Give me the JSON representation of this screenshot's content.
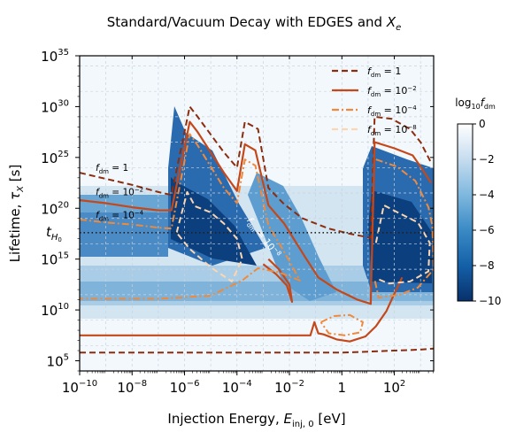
{
  "chart_data": {
    "type": "heatmap",
    "title_parts": [
      "Standard/Vacuum Decay with EDGES and ",
      "X",
      "e"
    ],
    "xlabel_parts": [
      "Injection Energy, ",
      "E",
      "inj, 0",
      " [eV]"
    ],
    "ylabel_parts": [
      "Lifetime,  ",
      "τ",
      "X",
      "  [s]"
    ],
    "x_scale": "log",
    "y_scale": "log",
    "xlim_log10": [
      -10,
      3.5
    ],
    "ylim_log10": [
      4,
      35
    ],
    "x_ticks": [
      {
        "exp": "−10",
        "value": -10
      },
      {
        "exp": "−8",
        "value": -8
      },
      {
        "exp": "−6",
        "value": -6
      },
      {
        "exp": "−4",
        "value": -4
      },
      {
        "exp": "−2",
        "value": -2
      },
      {
        "plain": "1",
        "value": 0
      },
      {
        "exp": "2",
        "value": 2
      }
    ],
    "y_ticks": [
      {
        "exp": "5",
        "value": 5
      },
      {
        "exp": "10",
        "value": 10
      },
      {
        "exp": "15",
        "value": 15
      },
      {
        "exp": "20",
        "value": 20
      },
      {
        "exp": "25",
        "value": 25
      },
      {
        "exp": "30",
        "value": 30
      },
      {
        "exp": "35",
        "value": 35
      }
    ],
    "hubble_line": {
      "label_main": "t",
      "label_sub": "H",
      "label_subsub": "0",
      "log10_value": 17.6
    },
    "colorbar": {
      "label_prefix": "log",
      "label_sub": "10",
      "label_main": "f",
      "label_sub2": "dm",
      "ticks": [
        "0",
        "−2",
        "−4",
        "−6",
        "−8",
        "−10"
      ],
      "range": [
        -10,
        0
      ],
      "colors": [
        "#08306b",
        "#ffffff"
      ]
    },
    "legend": [
      {
        "label_main": "f",
        "label_sub": "dm",
        "label_rest": " = 1",
        "color": "#8b2d0e",
        "dash": "7,4",
        "width": 2.2
      },
      {
        "label_main": "f",
        "label_sub": "dm",
        "label_rest": " = 10",
        "sup": "−2",
        "color": "#c4481a",
        "dash": "",
        "width": 2.2
      },
      {
        "label_main": "f",
        "label_sub": "dm",
        "label_rest": " = 10",
        "sup": "−4",
        "color": "#ef8a3c",
        "dash": "8,3,2,3",
        "width": 2.2
      },
      {
        "label_main": "f",
        "label_sub": "dm",
        "label_rest": " = 10",
        "sup": "−8",
        "color": "#fcd6b0",
        "dash": "7,4",
        "width": 2.2
      }
    ],
    "annotations": [
      {
        "label_main": "f",
        "label_sub": "dm",
        "label_rest": " = 1",
        "x": -10.0,
        "y": 23.7
      },
      {
        "label_main": "f",
        "label_sub": "dm",
        "label_rest": " = 10",
        "sup": "−2",
        "x": -10.0,
        "y": 21.3
      },
      {
        "label_main": "f",
        "label_sub": "dm",
        "label_rest": " = 10",
        "sup": "−4",
        "x": -10.0,
        "y": 19.0
      },
      {
        "label_main": "f",
        "label_sub": "dm",
        "label_rest": " = 10",
        "sup": "−8",
        "x": -4.25,
        "y": 18.8,
        "rotate": 52,
        "color": "#ffffff"
      }
    ],
    "contours": [
      {
        "level": "1",
        "color": "#8b2d0e",
        "dash": "7,4",
        "width": 2,
        "points": [
          [
            -10,
            23.5
          ],
          [
            -9,
            22.9
          ],
          [
            -8,
            22.3
          ],
          [
            -7,
            21.6
          ],
          [
            -6.5,
            21.3
          ],
          [
            -5.8,
            30.0
          ],
          [
            -5.5,
            29.0
          ],
          [
            -4.5,
            25.5
          ],
          [
            -4.0,
            24.0
          ],
          [
            -3.7,
            28.5
          ],
          [
            -3.2,
            27.8
          ],
          [
            -2.8,
            22.0
          ],
          [
            -2.2,
            20.4
          ],
          [
            -1.5,
            19.0
          ],
          [
            -0.5,
            18.0
          ],
          [
            0.3,
            17.5
          ],
          [
            1.1,
            17.1
          ],
          [
            1.25,
            29.0
          ],
          [
            1.9,
            28.8
          ],
          [
            2.6,
            27.8
          ],
          [
            3.0,
            26.5
          ],
          [
            3.4,
            24.5
          ]
        ]
      },
      {
        "level": "1b",
        "color": "#8b2d0e",
        "dash": "7,4",
        "width": 2,
        "points": [
          [
            -10,
            5.8
          ],
          [
            -6,
            5.8
          ],
          [
            -2,
            5.8
          ],
          [
            0,
            5.8
          ],
          [
            1,
            5.9
          ],
          [
            2,
            6.0
          ],
          [
            3,
            6.1
          ],
          [
            3.5,
            6.2
          ]
        ]
      },
      {
        "level": "1e-2",
        "color": "#c4481a",
        "dash": "",
        "width": 2.2,
        "points": [
          [
            -10,
            20.8
          ],
          [
            -9,
            20.5
          ],
          [
            -8,
            20.1
          ],
          [
            -7,
            19.8
          ],
          [
            -6.5,
            19.8
          ],
          [
            -5.8,
            28.5
          ],
          [
            -5.5,
            27.5
          ],
          [
            -4.5,
            23.5
          ],
          [
            -4.0,
            21.7
          ],
          [
            -3.7,
            26.3
          ],
          [
            -3.3,
            25.7
          ],
          [
            -2.8,
            20.3
          ],
          [
            -2.2,
            18.5
          ],
          [
            -1.4,
            15.2
          ],
          [
            -0.9,
            13.2
          ],
          [
            -0.2,
            12.0
          ],
          [
            0.6,
            11.0
          ],
          [
            1.1,
            10.6
          ],
          [
            1.25,
            26.5
          ],
          [
            2.0,
            25.9
          ],
          [
            2.7,
            25.2
          ],
          [
            3.0,
            24.1
          ],
          [
            3.4,
            22.5
          ]
        ]
      },
      {
        "level": "1e-2b",
        "color": "#c4481a",
        "dash": "",
        "width": 2.2,
        "points": [
          [
            -10,
            7.5
          ],
          [
            -6,
            7.5
          ],
          [
            -3,
            7.5
          ],
          [
            -1.2,
            7.5
          ],
          [
            -1.05,
            8.8
          ],
          [
            -0.9,
            7.7
          ],
          [
            -0.7,
            7.6
          ],
          [
            -0.2,
            7.1
          ],
          [
            0.3,
            6.9
          ],
          [
            0.9,
            7.4
          ],
          [
            1.3,
            8.4
          ],
          [
            1.7,
            9.9
          ],
          [
            2.0,
            11.6
          ],
          [
            2.3,
            13.2
          ]
        ]
      },
      {
        "level": "1e-2c",
        "color": "#c4481a",
        "dash": "",
        "width": 2.2,
        "points": [
          [
            -2.8,
            15.0
          ],
          [
            -2.4,
            14.0
          ],
          [
            -2.0,
            12.5
          ],
          [
            -1.9,
            10.8
          ],
          [
            -2.1,
            12.4
          ],
          [
            -2.5,
            13.5
          ],
          [
            -3.0,
            14.5
          ]
        ]
      },
      {
        "level": "1e-4",
        "color": "#ef8a3c",
        "dash": "8,3,2,3",
        "width": 2,
        "points": [
          [
            -10,
            18.9
          ],
          [
            -9,
            18.6
          ],
          [
            -8,
            18.4
          ],
          [
            -7,
            18.1
          ],
          [
            -6.5,
            18.0
          ],
          [
            -5.8,
            27.3
          ],
          [
            -5.5,
            26.2
          ],
          [
            -4.5,
            22.0
          ],
          [
            -4.0,
            20.5
          ],
          [
            -3.7,
            24.8
          ],
          [
            -3.3,
            24.2
          ],
          [
            -2.8,
            18.3
          ],
          [
            -2.4,
            16.6
          ],
          [
            -2.0,
            14.8
          ],
          [
            -1.6,
            12.9
          ],
          [
            -2.4,
            13.7
          ],
          [
            -3.2,
            14.1
          ],
          [
            -3.8,
            12.9
          ],
          [
            -5,
            11.4
          ],
          [
            -7,
            11.1
          ],
          [
            -10,
            11.1
          ]
        ]
      },
      {
        "level": "1e-4b",
        "color": "#ef8a3c",
        "dash": "8,3,2,3",
        "width": 2,
        "points": [
          [
            1.3,
            24.8
          ],
          [
            2.1,
            24.1
          ],
          [
            2.8,
            22.7
          ],
          [
            3.3,
            20.1
          ],
          [
            3.45,
            18.3
          ],
          [
            3.5,
            14.0
          ],
          [
            2.9,
            12.2
          ],
          [
            2.2,
            11.5
          ],
          [
            1.4,
            11.2
          ],
          [
            1.25,
            13.0
          ]
        ]
      },
      {
        "level": "1e-4c",
        "color": "#ef8a3c",
        "dash": "8,3,2,3",
        "width": 2,
        "points": [
          [
            -0.8,
            8.8
          ],
          [
            -0.3,
            9.4
          ],
          [
            0.3,
            9.5
          ],
          [
            0.8,
            8.8
          ],
          [
            0.7,
            7.8
          ],
          [
            0.1,
            7.5
          ],
          [
            -0.5,
            7.7
          ],
          [
            -0.8,
            8.8
          ]
        ]
      },
      {
        "level": "1e-8",
        "color": "#fcd6b0",
        "dash": "7,4",
        "width": 2,
        "points": [
          [
            -6.3,
            17.6
          ],
          [
            -5.9,
            21.6
          ],
          [
            -5.6,
            20.2
          ],
          [
            -5.0,
            19.6
          ],
          [
            -4.5,
            18.5
          ],
          [
            -4.0,
            17.0
          ],
          [
            -3.8,
            15.0
          ],
          [
            -4.2,
            12.8
          ],
          [
            -5.0,
            14.2
          ],
          [
            -5.8,
            16.0
          ],
          [
            -6.3,
            17.6
          ]
        ]
      },
      {
        "level": "1e-8b",
        "color": "#fcd6b0",
        "dash": "7,4",
        "width": 2,
        "points": [
          [
            1.3,
            16.6
          ],
          [
            1.6,
            20.3
          ],
          [
            2.2,
            19.5
          ],
          [
            2.9,
            18.6
          ],
          [
            3.35,
            16.6
          ],
          [
            3.3,
            13.8
          ],
          [
            2.6,
            12.8
          ],
          [
            1.8,
            12.6
          ],
          [
            1.4,
            13.0
          ]
        ]
      }
    ]
  }
}
